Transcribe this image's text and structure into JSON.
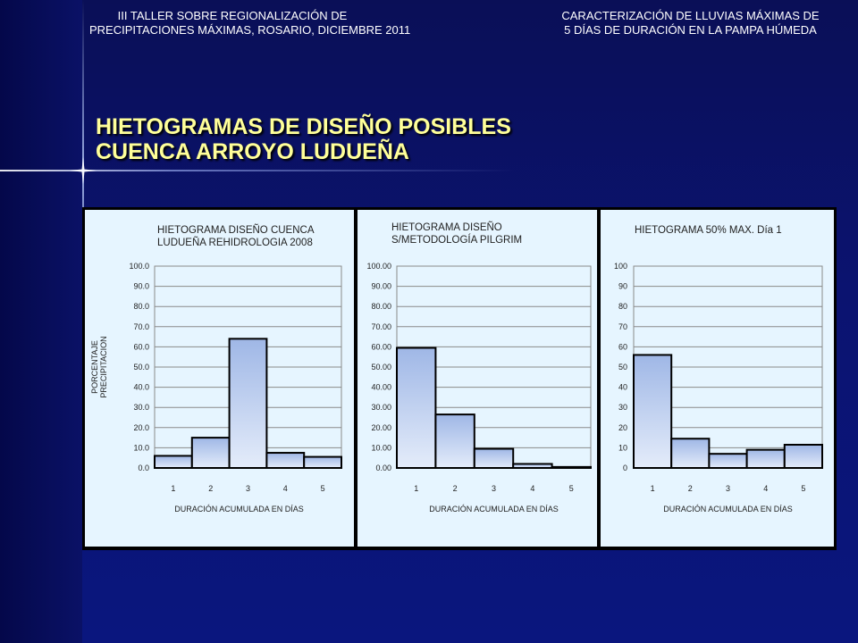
{
  "header": {
    "left_line1": "III TALLER SOBRE REGIONALIZACIÓN DE",
    "left_line2": "PRECIPITACIONES MÁXIMAS, ROSARIO, DICIEMBRE 2011",
    "right_line1": "CARACTERIZACIÓN DE LLUVIAS MÁXIMAS DE",
    "right_line2": "5 DÍAS DE DURACIÓN EN LA PAMPA HÚMEDA"
  },
  "title": {
    "line1": "HIETOGRAMAS DE DISEÑO POSIBLES",
    "line2": "CUENCA ARROYO LUDUEÑA"
  },
  "colors": {
    "title": "#ffff99",
    "panel_bg": "#e6f5ff",
    "bar_top": "#9fb7e6",
    "bar_bottom": "#e4ecfa",
    "bar_stroke": "#000000",
    "grid": "#8a8a8a"
  },
  "chart_data": [
    {
      "type": "bar",
      "title_line1": "HIETOGRAMA  DISEÑO CUENCA",
      "title_line2": "LUDUEÑA REHIDROLOGIA  2008",
      "ylabel_line1": "PORCENTAJE",
      "ylabel_line2": "PRECIPITACION",
      "xlabel": "DURACIÓN ACUMULADA EN DÍAS",
      "categories": [
        "1",
        "2",
        "3",
        "4",
        "5"
      ],
      "values": [
        6.0,
        15.0,
        64.0,
        7.5,
        5.5
      ],
      "ylim": [
        0,
        100
      ],
      "yticks": [
        "0.0",
        "10.0",
        "20.0",
        "30.0",
        "40.0",
        "50.0",
        "60.0",
        "70.0",
        "80.0",
        "90.0",
        "100.0"
      ],
      "grid": true
    },
    {
      "type": "bar",
      "title_line1": "HIETOGRAMA  DISEÑO",
      "title_line2": "S/METODOLOGÍA PILGRIM",
      "xlabel": "DURACIÓN ACUMULADA EN DÍAS",
      "categories": [
        "1",
        "2",
        "3",
        "4",
        "5"
      ],
      "values": [
        59.5,
        26.5,
        9.5,
        2.0,
        0.5
      ],
      "ylim": [
        0,
        100
      ],
      "yticks": [
        "0.00",
        "10.00",
        "20.00",
        "30.00",
        "40.00",
        "50.00",
        "60.00",
        "70.00",
        "80.00",
        "90.00",
        "100.00"
      ],
      "grid": true
    },
    {
      "type": "bar",
      "title_line1": "HIETOGRAMA  50% MAX. Día 1",
      "title_line2": "",
      "xlabel": "DURACIÓN ACUMULADA EN DÍAS",
      "categories": [
        "1",
        "2",
        "3",
        "4",
        "5"
      ],
      "values": [
        56.0,
        14.5,
        7.0,
        9.0,
        11.5
      ],
      "ylim": [
        0,
        100
      ],
      "yticks": [
        "0",
        "10",
        "20",
        "30",
        "40",
        "50",
        "60",
        "70",
        "80",
        "90",
        "100"
      ],
      "grid": true
    }
  ]
}
